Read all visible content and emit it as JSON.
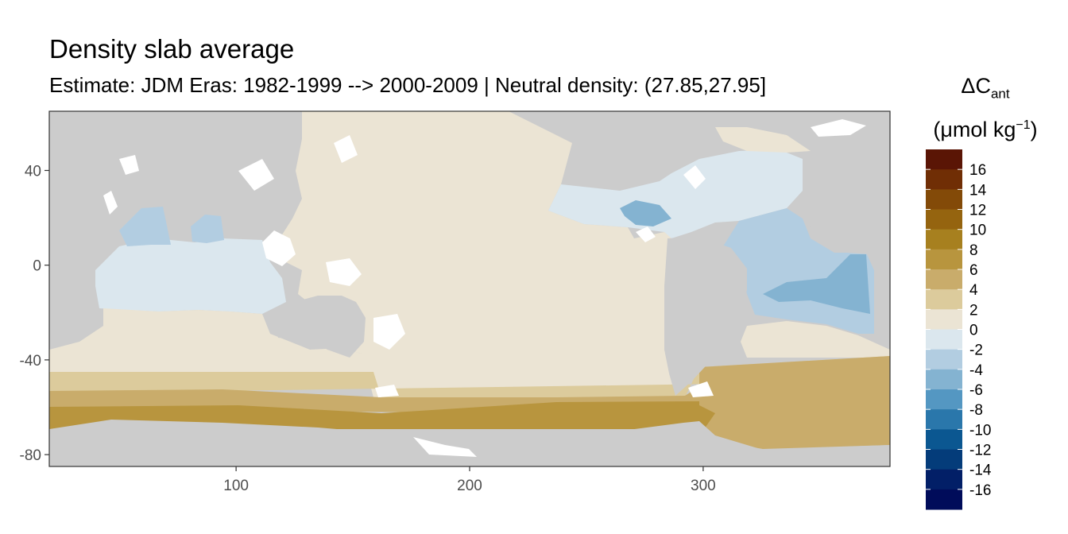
{
  "title": "Density slab average",
  "subtitle": "Estimate: JDM Eras: 1982-1999 --> 2000-2009 | Neutral density: (27.85,27.95]",
  "x_axis": {
    "ticks": [
      "100",
      "200",
      "300"
    ],
    "range": [
      20,
      380
    ]
  },
  "y_axis": {
    "ticks": [
      "40",
      "0",
      "-40",
      "-80"
    ],
    "range": [
      -85,
      65
    ]
  },
  "legend": {
    "title_main": "ΔC",
    "title_sub": "ant",
    "unit_prefix": "(μmol kg",
    "unit_sup": "−1",
    "unit_suffix": ")",
    "labels": [
      "16",
      "14",
      "12",
      "10",
      "8",
      "6",
      "4",
      "2",
      "0",
      "-2",
      "-4",
      "-6",
      "-8",
      "-10",
      "-12",
      "-14",
      "-16"
    ],
    "colors": [
      "#5a1505",
      "#702e05",
      "#834a08",
      "#95640f",
      "#a7801f",
      "#b8953e",
      "#c9ac6b",
      "#dccb9c",
      "#ebe4d4",
      "#dbe7ee",
      "#b2cde1",
      "#84b3d1",
      "#5497c2",
      "#2a77ab",
      "#0b5791",
      "#043c7a",
      "#021f67",
      "#000c5a"
    ]
  },
  "colors": {
    "land": "#cccccc",
    "ocean_mask": "#ffffff",
    "panel_border": "#333333"
  }
}
